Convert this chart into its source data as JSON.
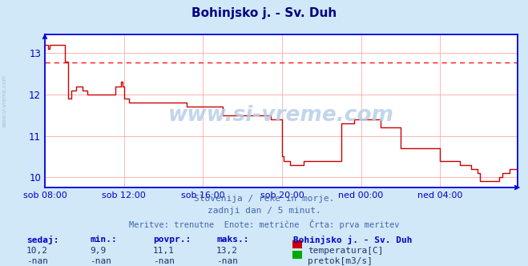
{
  "title": "Bohinjsko j. - Sv. Duh",
  "title_color": "#000080",
  "bg_color": "#d0e8f8",
  "plot_bg_color": "#ffffff",
  "grid_color": "#ffaaaa",
  "axis_color": "#0000dd",
  "tick_color": "#0000cc",
  "line_color": "#cc0000",
  "dashed_line_color": "#ff0000",
  "dashed_line_y": 12.78,
  "xlim_start": 0,
  "xlim_end": 287,
  "ylim": [
    9.75,
    13.45
  ],
  "yticks": [
    10,
    11,
    12,
    13
  ],
  "xtick_labels": [
    "sob 08:00",
    "sob 12:00",
    "sob 16:00",
    "sob 20:00",
    "ned 00:00",
    "ned 04:00"
  ],
  "xtick_positions": [
    0,
    48,
    96,
    144,
    192,
    240
  ],
  "watermark": "www.si-vreme.com",
  "footer_line1": "Slovenija / reke in morje.",
  "footer_line2": "zadnji dan / 5 minut.",
  "footer_line3": "Meritve: trenutne  Enote: metrične  Črta: prva meritev",
  "footer_color": "#4466aa",
  "stats_color": "#0000cc",
  "stats_value_color": "#223366",
  "stats_labels": [
    "sedaj:",
    "min.:",
    "povpr.:",
    "maks.:"
  ],
  "stats_values": [
    "10,2",
    "9,9",
    "11,1",
    "13,2"
  ],
  "legend_station": "Bohinjsko j. - Sv. Duh",
  "legend_temp_color": "#cc0000",
  "legend_flow_color": "#00aa00",
  "legend_temp_label": "temperatura[C]",
  "legend_flow_label": "pretok[m3/s]",
  "side_text": "www.si-vreme.com",
  "side_text_color": "#aabbcc",
  "temp_data": [
    13.2,
    13.2,
    13.1,
    13.2,
    13.2,
    13.2,
    13.2,
    13.2,
    13.2,
    13.2,
    13.2,
    13.2,
    12.8,
    12.8,
    11.9,
    11.9,
    12.1,
    12.1,
    12.1,
    12.2,
    12.2,
    12.2,
    12.2,
    12.1,
    12.1,
    12.1,
    12.0,
    12.0,
    12.0,
    12.0,
    12.0,
    12.0,
    12.0,
    12.0,
    12.0,
    12.0,
    12.0,
    12.0,
    12.0,
    12.0,
    12.0,
    12.0,
    12.0,
    12.2,
    12.2,
    12.2,
    12.3,
    12.2,
    11.9,
    11.9,
    11.9,
    11.8,
    11.8,
    11.8,
    11.8,
    11.8,
    11.8,
    11.8,
    11.8,
    11.8,
    11.8,
    11.8,
    11.8,
    11.8,
    11.8,
    11.8,
    11.8,
    11.8,
    11.8,
    11.8,
    11.8,
    11.8,
    11.8,
    11.8,
    11.8,
    11.8,
    11.8,
    11.8,
    11.8,
    11.8,
    11.8,
    11.8,
    11.8,
    11.8,
    11.8,
    11.8,
    11.7,
    11.7,
    11.7,
    11.7,
    11.7,
    11.7,
    11.7,
    11.7,
    11.7,
    11.7,
    11.7,
    11.7,
    11.7,
    11.7,
    11.7,
    11.7,
    11.7,
    11.7,
    11.7,
    11.7,
    11.7,
    11.7,
    11.5,
    11.5,
    11.5,
    11.5,
    11.5,
    11.5,
    11.5,
    11.5,
    11.5,
    11.5,
    11.5,
    11.5,
    11.5,
    11.5,
    11.5,
    11.5,
    11.5,
    11.5,
    11.5,
    11.5,
    11.5,
    11.5,
    11.5,
    11.5,
    11.5,
    11.5,
    11.5,
    11.5,
    11.5,
    11.4,
    11.4,
    11.4,
    11.4,
    11.4,
    11.4,
    11.4,
    10.5,
    10.4,
    10.4,
    10.4,
    10.4,
    10.3,
    10.3,
    10.3,
    10.3,
    10.3,
    10.3,
    10.3,
    10.3,
    10.4,
    10.4,
    10.4,
    10.4,
    10.4,
    10.4,
    10.4,
    10.4,
    10.4,
    10.4,
    10.4,
    10.4,
    10.4,
    10.4,
    10.4,
    10.4,
    10.4,
    10.4,
    10.4,
    10.4,
    10.4,
    10.4,
    10.4,
    11.3,
    11.3,
    11.3,
    11.3,
    11.3,
    11.3,
    11.3,
    11.3,
    11.4,
    11.4,
    11.4,
    11.4,
    11.4,
    11.4,
    11.4,
    11.4,
    11.4,
    11.4,
    11.4,
    11.4,
    11.4,
    11.4,
    11.4,
    11.4,
    11.2,
    11.2,
    11.2,
    11.2,
    11.2,
    11.2,
    11.2,
    11.2,
    11.2,
    11.2,
    11.2,
    11.2,
    10.7,
    10.7,
    10.7,
    10.7,
    10.7,
    10.7,
    10.7,
    10.7,
    10.7,
    10.7,
    10.7,
    10.7,
    10.7,
    10.7,
    10.7,
    10.7,
    10.7,
    10.7,
    10.7,
    10.7,
    10.7,
    10.7,
    10.7,
    10.7,
    10.4,
    10.4,
    10.4,
    10.4,
    10.4,
    10.4,
    10.4,
    10.4,
    10.4,
    10.4,
    10.4,
    10.4,
    10.3,
    10.3,
    10.3,
    10.3,
    10.3,
    10.3,
    10.3,
    10.2,
    10.2,
    10.2,
    10.2,
    10.1,
    9.9,
    9.9,
    9.9,
    9.9,
    9.9,
    9.9,
    9.9,
    9.9,
    9.9,
    9.9,
    9.9,
    9.9,
    10.0,
    10.0,
    10.1,
    10.1,
    10.1,
    10.1,
    10.2,
    10.2,
    10.2,
    10.2,
    10.2,
    10.2
  ]
}
